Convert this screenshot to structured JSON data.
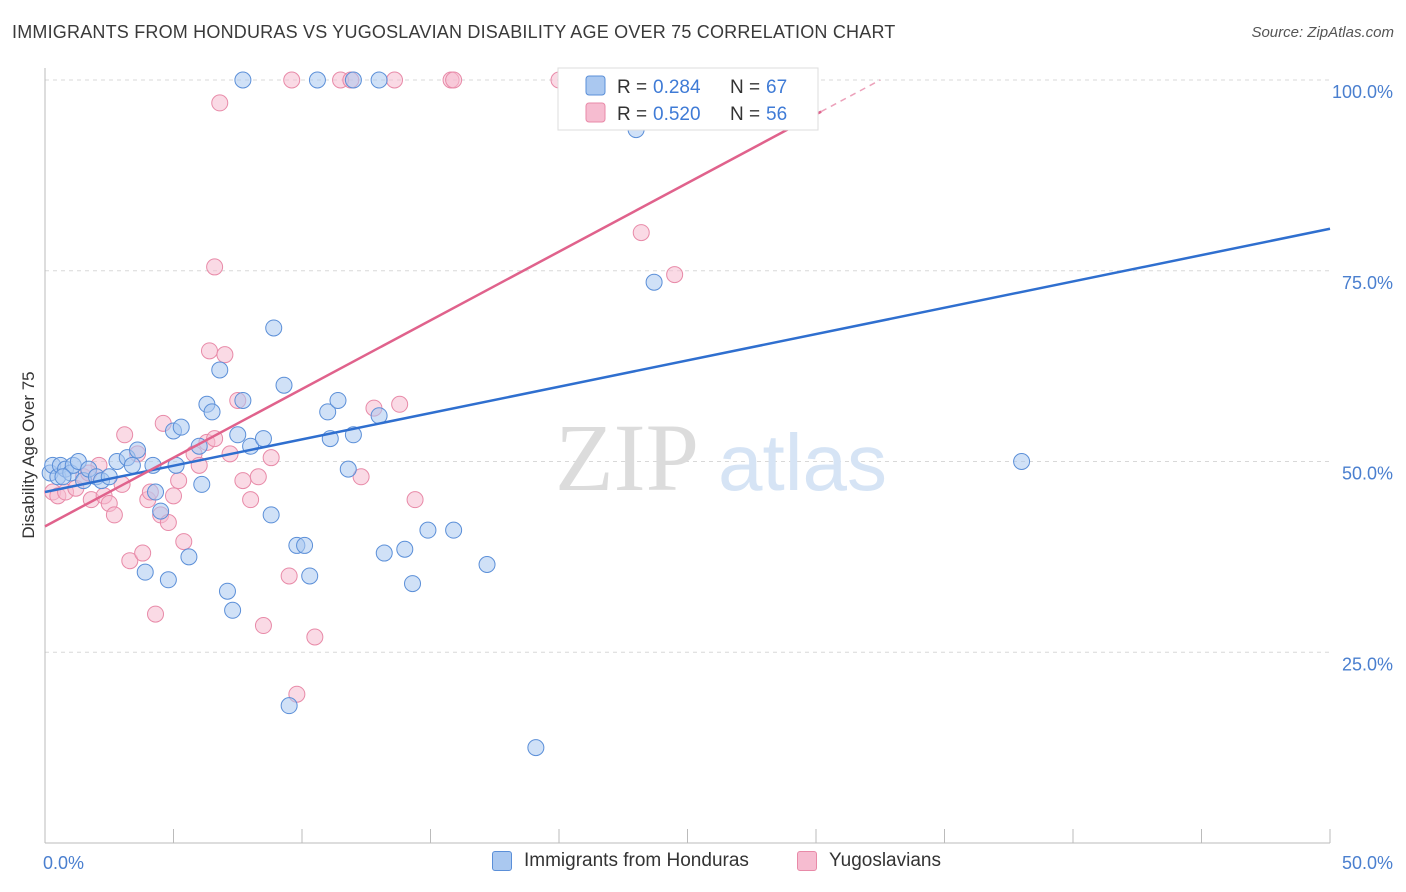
{
  "header": {
    "title": "IMMIGRANTS FROM HONDURAS VS YUGOSLAVIAN DISABILITY AGE OVER 75 CORRELATION CHART",
    "source": "Source: ZipAtlas.com"
  },
  "watermark": {
    "part1": "ZIP",
    "part2": "atlas"
  },
  "colors": {
    "blue_fill": "#aac8f0",
    "blue_stroke": "#5b8fd8",
    "blue_line": "#2f6fcf",
    "pink_fill": "#f6bcd0",
    "pink_stroke": "#e88aa8",
    "pink_line": "#e0628c",
    "axis_label": "#4a7fcf",
    "grid": "#d8d8d8"
  },
  "legend_top": {
    "rows": [
      {
        "r_label": "R =",
        "r_value": "0.284",
        "n_label": "N =",
        "n_value": "67"
      },
      {
        "r_label": "R =",
        "r_value": "0.520",
        "n_label": "N =",
        "n_value": "56"
      }
    ]
  },
  "legend_bottom": {
    "items": [
      "Immigrants from Honduras",
      "Yugoslavians"
    ]
  },
  "chart_data": {
    "type": "scatter",
    "ylabel": "Disability Age Over 75",
    "xlim": [
      0,
      50
    ],
    "ylim": [
      0,
      102
    ],
    "x_tick_labels": {
      "left": "0.0%",
      "right": "50.0%"
    },
    "y_ticks": [
      {
        "value": 100,
        "label": "100.0%"
      },
      {
        "value": 75,
        "label": "75.0%"
      },
      {
        "value": 50,
        "label": "50.0%"
      },
      {
        "value": 25,
        "label": "25.0%"
      }
    ],
    "series": [
      {
        "name": "Immigrants from Honduras",
        "color": "blue",
        "trend": {
          "x1": 0,
          "y1": 46,
          "x2": 50,
          "y2": 80.5,
          "dashed_from": null
        },
        "points": [
          [
            0.2,
            48.5
          ],
          [
            0.3,
            49.5
          ],
          [
            0.5,
            48
          ],
          [
            0.6,
            49.5
          ],
          [
            0.8,
            49
          ],
          [
            1.0,
            48.5
          ],
          [
            1.1,
            49.5
          ],
          [
            1.3,
            50
          ],
          [
            1.5,
            47.5
          ],
          [
            1.7,
            49
          ],
          [
            2.0,
            48
          ],
          [
            2.2,
            47.5
          ],
          [
            2.5,
            48
          ],
          [
            2.8,
            50
          ],
          [
            3.2,
            50.5
          ],
          [
            3.4,
            49.5
          ],
          [
            3.6,
            51.5
          ],
          [
            3.9,
            35.5
          ],
          [
            4.2,
            49.5
          ],
          [
            4.3,
            46
          ],
          [
            4.5,
            43.5
          ],
          [
            4.8,
            34.5
          ],
          [
            5.0,
            54
          ],
          [
            5.1,
            49.5
          ],
          [
            5.3,
            54.5
          ],
          [
            5.6,
            37.5
          ],
          [
            6.0,
            52
          ],
          [
            6.1,
            47
          ],
          [
            6.3,
            57.5
          ],
          [
            6.5,
            56.5
          ],
          [
            6.8,
            62
          ],
          [
            7.1,
            33
          ],
          [
            7.3,
            30.5
          ],
          [
            7.5,
            53.5
          ],
          [
            7.7,
            58
          ],
          [
            8.0,
            52
          ],
          [
            8.5,
            53
          ],
          [
            8.8,
            43
          ],
          [
            8.9,
            67.5
          ],
          [
            9.3,
            60
          ],
          [
            9.5,
            18
          ],
          [
            9.8,
            39
          ],
          [
            10.1,
            39
          ],
          [
            10.3,
            35
          ],
          [
            11.0,
            56.5
          ],
          [
            11.1,
            53
          ],
          [
            11.4,
            58
          ],
          [
            11.8,
            49
          ],
          [
            12.0,
            53.5
          ],
          [
            13.0,
            56
          ],
          [
            13.2,
            38
          ],
          [
            14.0,
            38.5
          ],
          [
            14.3,
            34
          ],
          [
            14.9,
            41
          ],
          [
            15.9,
            41
          ],
          [
            17.2,
            36.5
          ],
          [
            19.1,
            12.5
          ],
          [
            23.7,
            73.5
          ],
          [
            23.0,
            93.5
          ],
          [
            38.0,
            50
          ],
          [
            7.7,
            100
          ],
          [
            10.6,
            100
          ],
          [
            12.0,
            100
          ],
          [
            13.0,
            100
          ],
          [
            22.5,
            100
          ],
          [
            23.3,
            99.5
          ],
          [
            0.7,
            48
          ]
        ]
      },
      {
        "name": "Yugoslavians",
        "color": "pink",
        "trend": {
          "x1": 0,
          "y1": 41.5,
          "x2": 32.5,
          "y2": 100,
          "dashed_from": 30.2
        },
        "points": [
          [
            0.3,
            46
          ],
          [
            0.5,
            45.5
          ],
          [
            0.8,
            46
          ],
          [
            1.2,
            46.5
          ],
          [
            1.5,
            48
          ],
          [
            1.8,
            45
          ],
          [
            2.1,
            49.5
          ],
          [
            2.3,
            45.5
          ],
          [
            2.5,
            44.5
          ],
          [
            2.7,
            43
          ],
          [
            3.0,
            47
          ],
          [
            3.1,
            53.5
          ],
          [
            3.3,
            37
          ],
          [
            3.6,
            51
          ],
          [
            3.8,
            38
          ],
          [
            4.0,
            45
          ],
          [
            4.1,
            46
          ],
          [
            4.3,
            30
          ],
          [
            4.5,
            43
          ],
          [
            4.6,
            55
          ],
          [
            4.8,
            42
          ],
          [
            5.0,
            45.5
          ],
          [
            5.2,
            47.5
          ],
          [
            5.4,
            39.5
          ],
          [
            5.8,
            51
          ],
          [
            6.0,
            49.5
          ],
          [
            6.3,
            52.5
          ],
          [
            6.4,
            64.5
          ],
          [
            6.6,
            53
          ],
          [
            6.6,
            75.5
          ],
          [
            6.8,
            97
          ],
          [
            7.0,
            64
          ],
          [
            7.2,
            51
          ],
          [
            7.5,
            58
          ],
          [
            7.7,
            47.5
          ],
          [
            8.0,
            45
          ],
          [
            8.3,
            48
          ],
          [
            8.5,
            28.5
          ],
          [
            8.8,
            50.5
          ],
          [
            9.5,
            35
          ],
          [
            10.5,
            27
          ],
          [
            12.3,
            48
          ],
          [
            12.8,
            57
          ],
          [
            13.8,
            57.5
          ],
          [
            14.4,
            45
          ],
          [
            15.8,
            100
          ],
          [
            23.2,
            80
          ],
          [
            24.5,
            74.5
          ],
          [
            9.6,
            100
          ],
          [
            11.5,
            100
          ],
          [
            11.9,
            100
          ],
          [
            13.6,
            100
          ],
          [
            15.9,
            100
          ],
          [
            20.0,
            100
          ],
          [
            9.8,
            19.5
          ],
          [
            1.7,
            48.5
          ]
        ]
      }
    ]
  }
}
